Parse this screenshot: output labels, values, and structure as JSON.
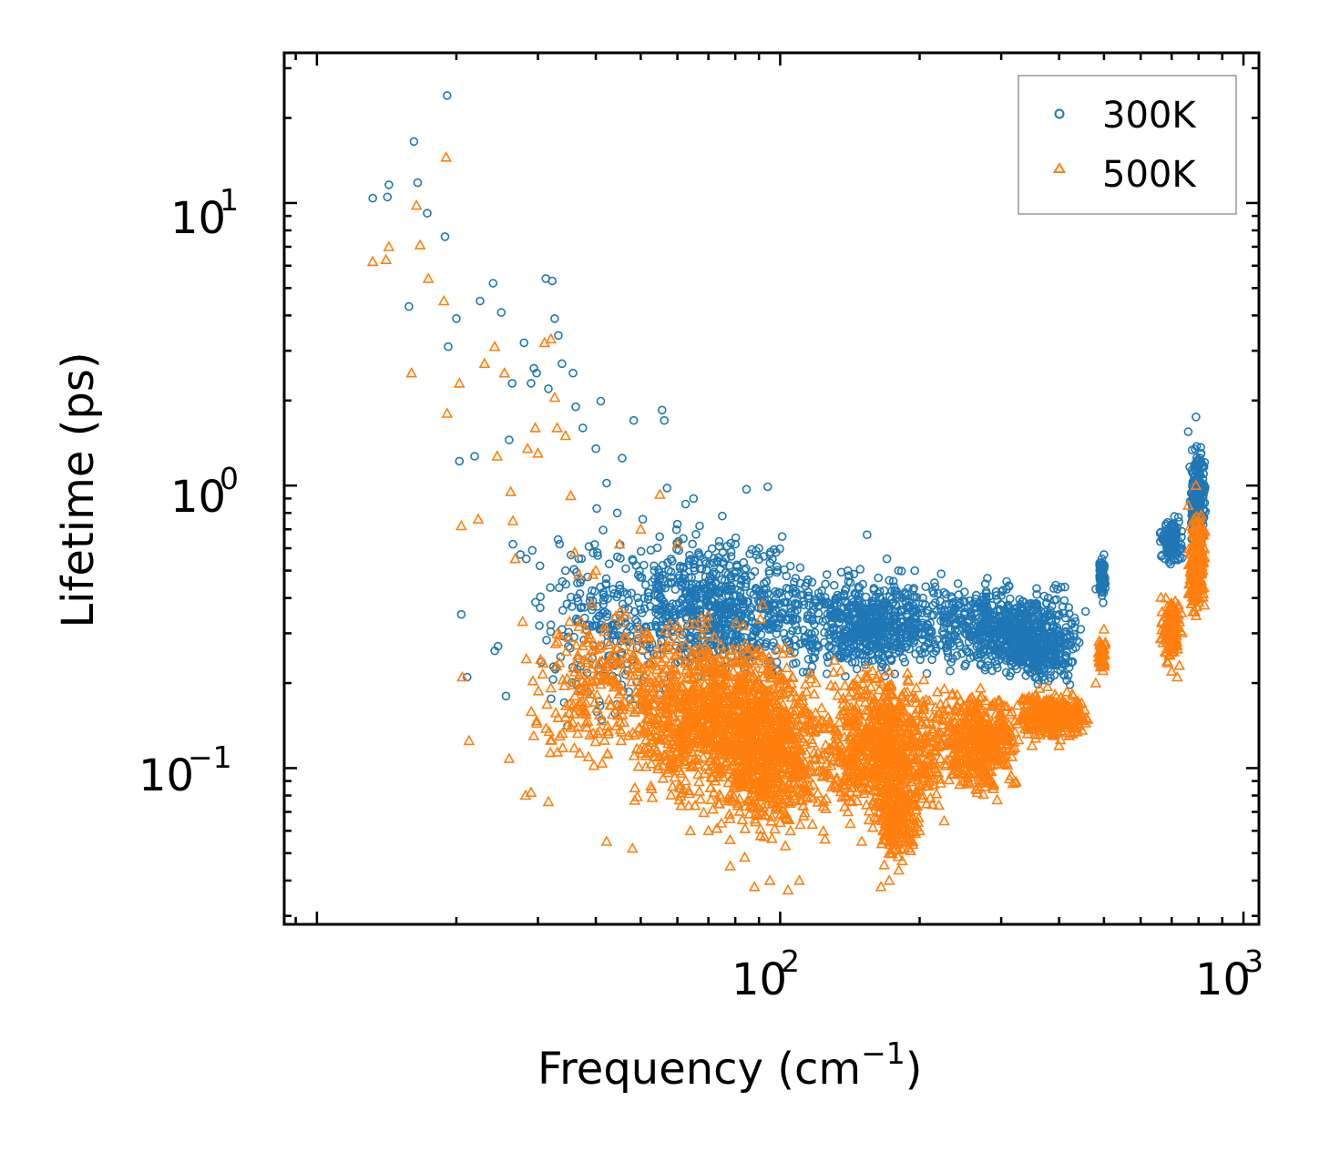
{
  "chart_data": {
    "type": "scatter",
    "title": "",
    "xscale": "log",
    "yscale": "log",
    "xlabel": "Frequency (cm",
    "xlabel_sup": "−1",
    "xlabel_close": ")",
    "ylabel": "Lifetime (ps)",
    "xlim": [
      8.5,
      1080
    ],
    "ylim": [
      0.028,
      34
    ],
    "xticks": [
      {
        "base": "10",
        "exp": "2",
        "value": 100
      },
      {
        "base": "10",
        "exp": "3",
        "value": 1000
      }
    ],
    "yticks": [
      {
        "base": "10",
        "exp": "1",
        "value": 10
      },
      {
        "base": "10",
        "exp": "0",
        "value": 1
      },
      {
        "base": "10",
        "exp": "−1",
        "value": 0.1
      }
    ],
    "legend_position": "top-right",
    "series": [
      {
        "name": "300K",
        "marker": "circle",
        "color": "#1f77b4",
        "points": [
          [
            13.2,
            10.4
          ],
          [
            14.2,
            10.5
          ],
          [
            14.3,
            11.6
          ],
          [
            15.8,
            4.3
          ],
          [
            16.2,
            16.5
          ],
          [
            16.5,
            11.8
          ],
          [
            17.3,
            9.2
          ],
          [
            18.9,
            7.6
          ],
          [
            19.1,
            24
          ],
          [
            19.2,
            3.1
          ],
          [
            20.0,
            3.9
          ],
          [
            20.3,
            1.22
          ],
          [
            20.5,
            0.35
          ],
          [
            21.1,
            0.21
          ],
          [
            21.9,
            1.27
          ],
          [
            22.5,
            4.5
          ],
          [
            24.0,
            5.2
          ],
          [
            24.2,
            0.26
          ],
          [
            24.6,
            0.27
          ],
          [
            25.0,
            4.1
          ],
          [
            25.6,
            0.18
          ],
          [
            26.0,
            1.45
          ],
          [
            26.4,
            2.3
          ],
          [
            26.5,
            0.62
          ],
          [
            27.5,
            0.57
          ],
          [
            28.0,
            3.2
          ],
          [
            28.3,
            0.55
          ],
          [
            29.0,
            2.3
          ],
          [
            29.4,
            2.6
          ],
          [
            29.8,
            2.5
          ],
          [
            30.3,
            0.52
          ],
          [
            31.2,
            5.4
          ],
          [
            31.6,
            2.2
          ],
          [
            32.2,
            5.3
          ],
          [
            32.6,
            3.9
          ],
          [
            33.2,
            3.4
          ],
          [
            33.8,
            2.7
          ],
          [
            34.4,
            0.5
          ],
          [
            35.7,
            2.5
          ],
          [
            36.2,
            1.9
          ],
          [
            37.5,
            1.6
          ],
          [
            40.0,
            1.35
          ],
          [
            41.0,
            1.99
          ],
          [
            42.2,
            1.02
          ],
          [
            44.5,
            0.8
          ],
          [
            45.6,
            1.25
          ],
          [
            48.3,
            1.7
          ],
          [
            50.5,
            0.76
          ],
          [
            55.6,
            1.85
          ],
          [
            56.2,
            1.7
          ],
          [
            57.0,
            0.98
          ],
          [
            60.0,
            0.73
          ],
          [
            62.5,
            0.86
          ],
          [
            65.0,
            0.9
          ],
          [
            67.0,
            0.72
          ],
          [
            70.0,
            0.57
          ],
          [
            75.0,
            0.78
          ],
          [
            80.0,
            0.62
          ],
          [
            84.6,
            0.97
          ],
          [
            90.0,
            0.6
          ],
          [
            94.0,
            0.99
          ],
          [
            98.0,
            0.58
          ],
          [
            101.0,
            0.66
          ],
          [
            108.0,
            0.47
          ],
          [
            115.0,
            0.42
          ],
          [
            125.0,
            0.38
          ],
          [
            140.0,
            0.5
          ],
          [
            154.0,
            0.67
          ],
          [
            170.0,
            0.55
          ],
          [
            180.0,
            0.5
          ],
          [
            210.0,
            0.3
          ],
          [
            250.0,
            0.42
          ],
          [
            280.0,
            0.47
          ],
          [
            330.0,
            0.38
          ],
          [
            400.0,
            0.35
          ],
          [
            480.0,
            0.43
          ],
          [
            500.0,
            0.57
          ],
          [
            680.0,
            0.72
          ],
          [
            720.0,
            0.6
          ],
          [
            760.0,
            1.55
          ],
          [
            790.0,
            1.75
          ],
          [
            810.0,
            1.3
          ],
          [
            820.0,
            1.1
          ]
        ],
        "clouds": [
          {
            "x": [
              28,
              60
            ],
            "y": [
              0.12,
              0.9
            ],
            "n": 220
          },
          {
            "x": [
              45,
              120
            ],
            "y": [
              0.18,
              0.75
            ],
            "n": 700
          },
          {
            "x": [
              100,
              260
            ],
            "y": [
              0.19,
              0.55
            ],
            "n": 700
          },
          {
            "x": [
              220,
              460
            ],
            "y": [
              0.2,
              0.48
            ],
            "n": 600
          },
          {
            "x": [
              300,
              430
            ],
            "y": [
              0.19,
              0.35
            ],
            "n": 250
          },
          {
            "x": [
              485,
              505
            ],
            "y": [
              0.38,
              0.58
            ],
            "n": 80
          },
          {
            "x": [
              660,
              740
            ],
            "y": [
              0.5,
              0.8
            ],
            "n": 140
          },
          {
            "x": [
              760,
              830
            ],
            "y": [
              0.55,
              1.6
            ],
            "n": 220
          }
        ]
      },
      {
        "name": "500K",
        "marker": "triangle",
        "color": "#ff7f0e",
        "points": [
          [
            13.2,
            6.2
          ],
          [
            14.1,
            6.3
          ],
          [
            14.3,
            7.0
          ],
          [
            16.0,
            2.5
          ],
          [
            16.4,
            9.8
          ],
          [
            16.7,
            7.1
          ],
          [
            17.4,
            5.4
          ],
          [
            18.8,
            4.5
          ],
          [
            19.0,
            14.5
          ],
          [
            19.1,
            1.8
          ],
          [
            20.3,
            2.3
          ],
          [
            20.5,
            0.72
          ],
          [
            20.6,
            0.21
          ],
          [
            21.3,
            0.125
          ],
          [
            22.3,
            0.76
          ],
          [
            23.0,
            2.7
          ],
          [
            24.2,
            3.1
          ],
          [
            24.5,
            1.27
          ],
          [
            25.4,
            2.5
          ],
          [
            26.0,
            0.108
          ],
          [
            26.2,
            0.95
          ],
          [
            26.5,
            0.75
          ],
          [
            26.8,
            0.55
          ],
          [
            27.8,
            0.33
          ],
          [
            28.2,
            0.08
          ],
          [
            28.5,
            1.35
          ],
          [
            29.0,
            0.082
          ],
          [
            29.6,
            1.6
          ],
          [
            30.0,
            1.3
          ],
          [
            31.0,
            3.2
          ],
          [
            31.6,
            0.076
          ],
          [
            32.0,
            3.3
          ],
          [
            32.6,
            2.05
          ],
          [
            33.0,
            1.6
          ],
          [
            34.4,
            1.5
          ],
          [
            35.3,
            0.92
          ],
          [
            36.0,
            0.58
          ],
          [
            40.0,
            0.5
          ],
          [
            42.2,
            0.055
          ],
          [
            45.0,
            0.62
          ],
          [
            48.0,
            0.052
          ],
          [
            50.0,
            0.7
          ],
          [
            55.0,
            0.93
          ],
          [
            60.0,
            0.62
          ],
          [
            64.0,
            0.06
          ],
          [
            70.0,
            0.06
          ],
          [
            72.0,
            0.12
          ],
          [
            78.0,
            0.045
          ],
          [
            84.0,
            0.061
          ],
          [
            88.0,
            0.038
          ],
          [
            95.0,
            0.04
          ],
          [
            104.0,
            0.037
          ],
          [
            110.0,
            0.04
          ],
          [
            125.0,
            0.056
          ],
          [
            140.0,
            0.07
          ],
          [
            150.0,
            0.055
          ],
          [
            165.0,
            0.038
          ],
          [
            172.0,
            0.04
          ],
          [
            200.0,
            0.06
          ],
          [
            226.0,
            0.065
          ],
          [
            260.0,
            0.11
          ],
          [
            300.0,
            0.14
          ],
          [
            350.0,
            0.12
          ],
          [
            400.0,
            0.12
          ],
          [
            440.0,
            0.15
          ],
          [
            480.0,
            0.2
          ],
          [
            500.0,
            0.31
          ],
          [
            680.0,
            0.4
          ],
          [
            700.0,
            0.22
          ],
          [
            720.0,
            0.21
          ],
          [
            760.0,
            0.85
          ],
          [
            790.0,
            1.0
          ],
          [
            810.0,
            0.72
          ]
        ],
        "clouds": [
          {
            "x": [
              28,
              58
            ],
            "y": [
              0.075,
              0.5
            ],
            "n": 220
          },
          {
            "x": [
              45,
              110
            ],
            "y": [
              0.06,
              0.4
            ],
            "n": 900
          },
          {
            "x": [
              70,
              130
            ],
            "y": [
              0.045,
              0.3
            ],
            "n": 700
          },
          {
            "x": [
              120,
              240
            ],
            "y": [
              0.055,
              0.26
            ],
            "n": 800
          },
          {
            "x": [
              160,
              200
            ],
            "y": [
              0.042,
              0.1
            ],
            "n": 200
          },
          {
            "x": [
              220,
              330
            ],
            "y": [
              0.07,
              0.22
            ],
            "n": 450
          },
          {
            "x": [
              320,
              470
            ],
            "y": [
              0.12,
              0.2
            ],
            "n": 300
          },
          {
            "x": [
              485,
              505
            ],
            "y": [
              0.21,
              0.3
            ],
            "n": 60
          },
          {
            "x": [
              660,
              740
            ],
            "y": [
              0.22,
              0.45
            ],
            "n": 130
          },
          {
            "x": [
              760,
              830
            ],
            "y": [
              0.3,
              0.9
            ],
            "n": 200
          }
        ]
      }
    ]
  }
}
